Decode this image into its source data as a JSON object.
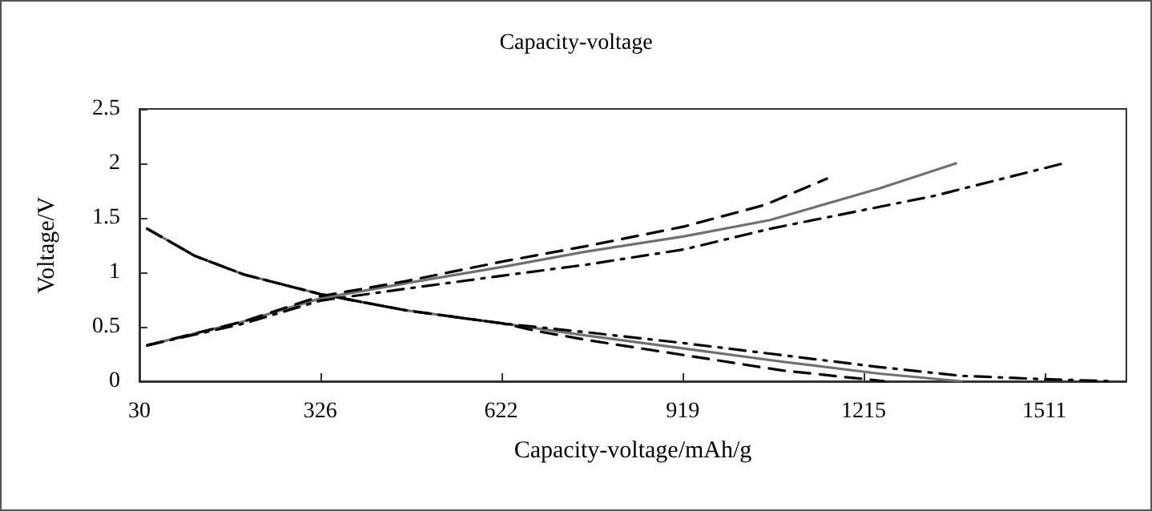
{
  "chart_data": {
    "type": "line",
    "title": "Capacity-voltage",
    "xlabel": "Capacity-voltage/mAh/g",
    "ylabel": "Voltage/V",
    "xlim": [
      30,
      1645
    ],
    "xticks": [
      30,
      326,
      622,
      919,
      1215,
      1511
    ],
    "ylim": [
      0,
      2.5
    ],
    "yticks": [
      0,
      0.5,
      1,
      1.5,
      2,
      2.5
    ],
    "grid": false,
    "marker": "none",
    "series": [
      {
        "color": "#707070",
        "line_style": "solid",
        "x": [
          43,
          121,
          201,
          326,
          467,
          625,
          761,
          921,
          1081,
          1241,
          1374
        ],
        "values": [
          1.4,
          1.15,
          0.98,
          0.8,
          0.65,
          0.53,
          0.42,
          0.3,
          0.18,
          0.07,
          0
        ]
      },
      {
        "color": "#000000",
        "line_style": "dashed",
        "x": [
          43,
          121,
          201,
          326,
          467,
          625,
          681,
          761,
          921,
          1081,
          1249
        ],
        "values": [
          1.4,
          1.15,
          0.98,
          0.8,
          0.65,
          0.53,
          0.46,
          0.38,
          0.24,
          0.1,
          0
        ]
      },
      {
        "color": "#000000",
        "line_style": "dashdot",
        "x": [
          43,
          121,
          201,
          326,
          467,
          625,
          761,
          921,
          1081,
          1241,
          1374,
          1507,
          1622
        ],
        "values": [
          1.4,
          1.15,
          0.98,
          0.8,
          0.65,
          0.53,
          0.45,
          0.35,
          0.24,
          0.13,
          0.05,
          0.02,
          0
        ]
      },
      {
        "color": "#707070",
        "line_style": "solid",
        "x": [
          43,
          201,
          326,
          467,
          625,
          761,
          921,
          1062,
          1241,
          1366
        ],
        "values": [
          0.33,
          0.55,
          0.76,
          0.9,
          1.05,
          1.19,
          1.33,
          1.48,
          1.77,
          2
        ]
      },
      {
        "color": "#000000",
        "line_style": "dashed",
        "x": [
          43,
          201,
          326,
          467,
          625,
          761,
          921,
          1054,
          1155
        ],
        "values": [
          0.33,
          0.55,
          0.78,
          0.92,
          1.1,
          1.24,
          1.42,
          1.62,
          1.86
        ]
      },
      {
        "color": "#000000",
        "line_style": "dashdot",
        "x": [
          43,
          201,
          326,
          467,
          625,
          761,
          921,
          1062,
          1329,
          1542
        ],
        "values": [
          0.33,
          0.53,
          0.74,
          0.85,
          0.97,
          1.07,
          1.21,
          1.4,
          1.7,
          2
        ]
      }
    ]
  }
}
